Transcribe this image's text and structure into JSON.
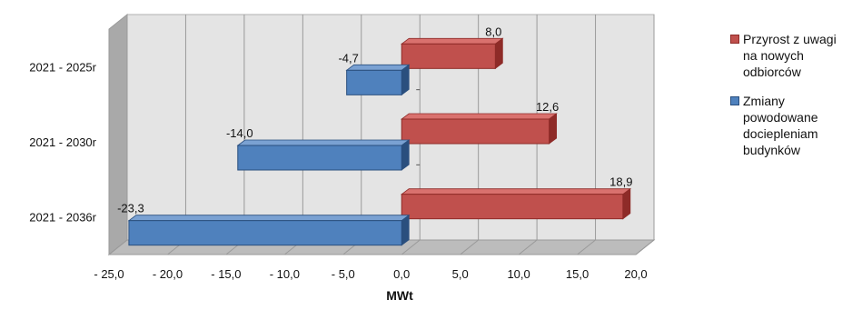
{
  "chart_data": {
    "type": "bar",
    "orientation": "horizontal",
    "style": "3d-clustered-bar",
    "categories": [
      "2021 - 2025r",
      "2021 - 2030r",
      "2021 - 2036r"
    ],
    "series": [
      {
        "name": "Przyrost z uwagi na nowych odbiorców",
        "values": [
          8.0,
          12.6,
          18.9
        ],
        "labels": [
          "8,0",
          "12,6",
          "18,9"
        ],
        "color": "#c0504d"
      },
      {
        "name": "Zmiany powodowane dociepleniam budynków",
        "values": [
          -4.7,
          -14.0,
          -23.3
        ],
        "labels": [
          "-4,7",
          "-14,0",
          "-23,3"
        ],
        "color": "#4f81bd"
      }
    ],
    "xlabel": "MWt",
    "ylabel": "",
    "xlim": [
      -25,
      20
    ],
    "xticks": [
      -25,
      -20,
      -15,
      -10,
      -5,
      0,
      5,
      10,
      15,
      20
    ],
    "xtick_labels": [
      "- 25,0",
      "- 20,0",
      "- 15,0",
      "- 10,0",
      "- 5,0",
      "0,0",
      "5,0",
      "10,0",
      "15,0",
      "20,0"
    ],
    "grid": true,
    "legend": "right",
    "colors": {
      "wall": "#e4e4e4",
      "floor": "#bcbcbc",
      "side_wall": "#a9a9a9",
      "grid": "#9a9a9a"
    }
  }
}
